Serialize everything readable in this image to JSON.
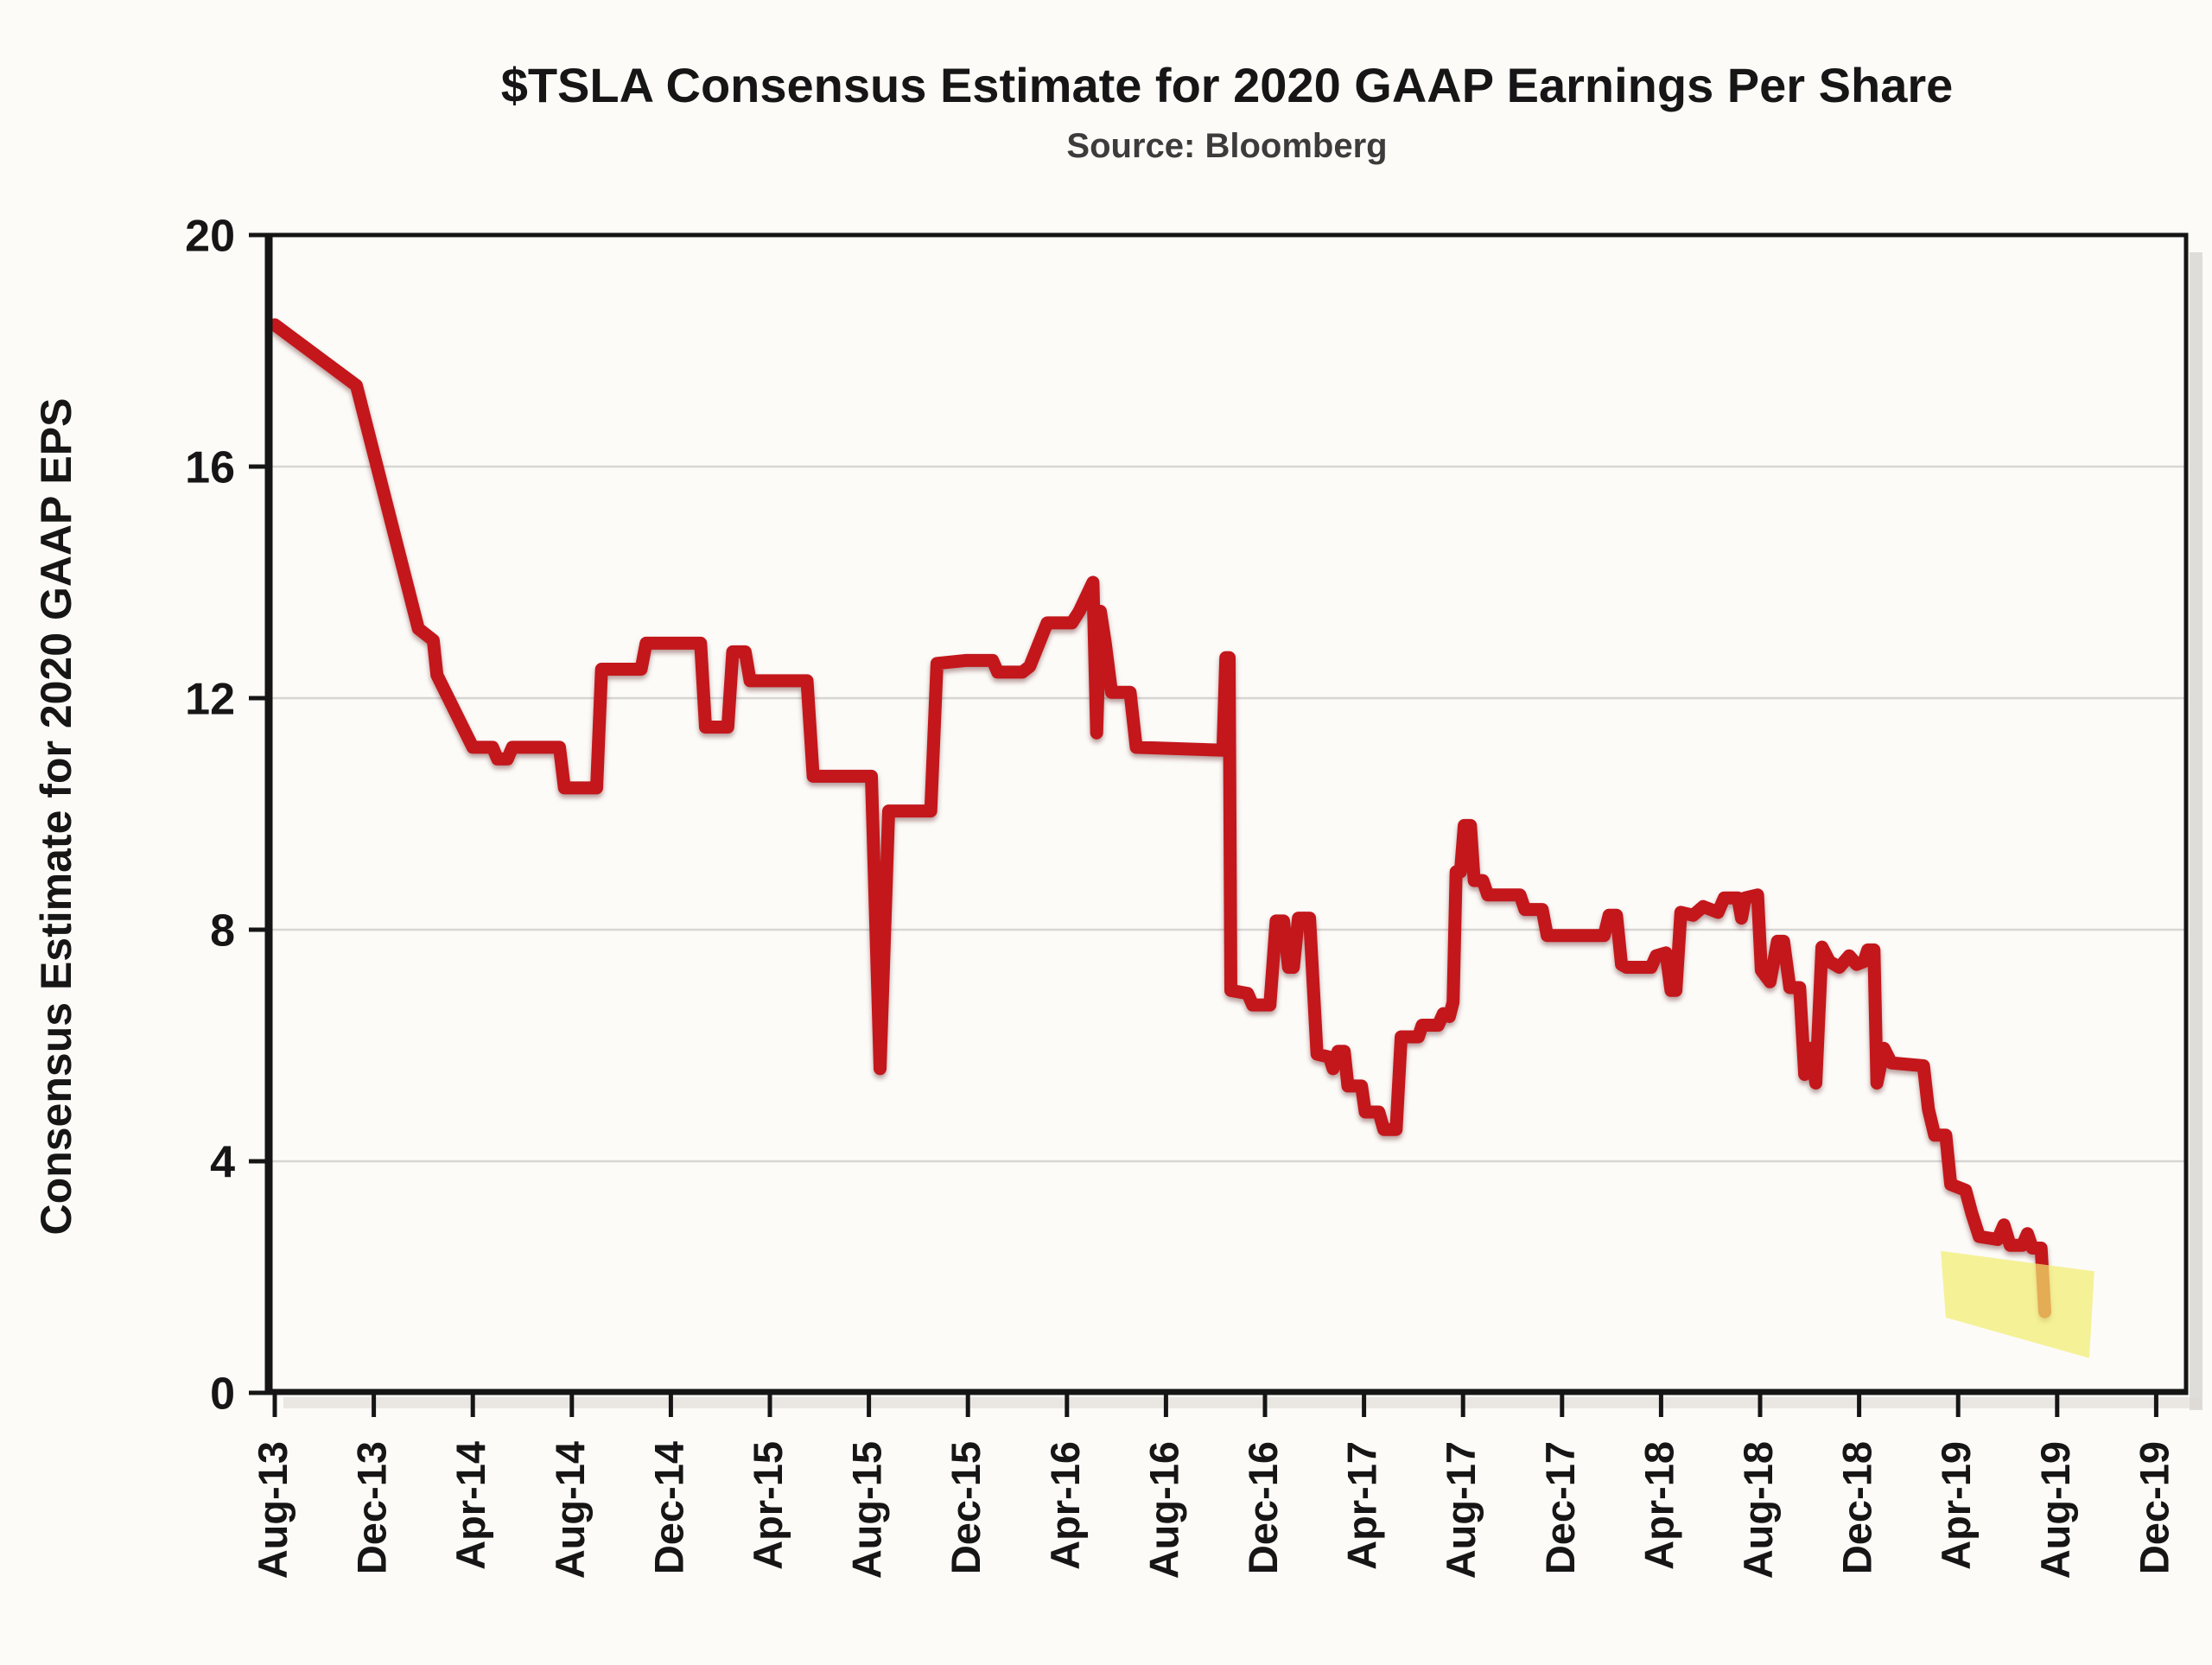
{
  "chart_data": {
    "type": "line",
    "title": "$TSLA Consensus Estimate for 2020 GAAP Earnings Per Share",
    "subtitle": "Source: Bloomberg",
    "xlabel": "",
    "ylabel": "Consensus Estimate for 2020 GAAP EPS",
    "x_axis": {
      "unit": "months since Aug-2013",
      "tick_interval_months": 4,
      "first_month": 0,
      "last_month": 76,
      "tick_labels": [
        "Aug-13",
        "Dec-13",
        "Apr-14",
        "Aug-14",
        "Dec-14",
        "Apr-15",
        "Aug-15",
        "Dec-15",
        "Apr-16",
        "Aug-16",
        "Dec-16",
        "Apr-17",
        "Aug-17",
        "Dec-17",
        "Apr-18",
        "Aug-18",
        "Dec-18",
        "Apr-19",
        "Aug-19",
        "Dec-19"
      ]
    },
    "y_axis": {
      "ticks": [
        0,
        4,
        8,
        12,
        16,
        20
      ],
      "range": [
        0,
        20
      ],
      "grid": "horizontal gridlines at 4, 8, 12, 16"
    },
    "colors": {
      "line": "#c3171c",
      "highlight": "#f2ec6e",
      "axis": "#151515",
      "gridline": "#d7d6d4",
      "background": "#fcfbf8"
    },
    "series": [
      {
        "name": "TSLA 2020 GAAP EPS consensus estimate",
        "color": "#c3171c",
        "points": [
          [
            0,
            18.45
          ],
          [
            3.3,
            17.4
          ],
          [
            5.8,
            13.2
          ],
          [
            6.4,
            13.0
          ],
          [
            6.55,
            12.4
          ],
          [
            8,
            11.15
          ],
          [
            8.8,
            11.15
          ],
          [
            9.0,
            10.95
          ],
          [
            9.4,
            10.95
          ],
          [
            9.6,
            11.15
          ],
          [
            11.5,
            11.15
          ],
          [
            11.7,
            10.45
          ],
          [
            13.0,
            10.45
          ],
          [
            13.2,
            12.5
          ],
          [
            14.8,
            12.5
          ],
          [
            15.0,
            12.95
          ],
          [
            17.2,
            12.95
          ],
          [
            17.4,
            11.5
          ],
          [
            18.3,
            11.5
          ],
          [
            18.5,
            12.8
          ],
          [
            19.0,
            12.8
          ],
          [
            19.2,
            12.3
          ],
          [
            21.5,
            12.3
          ],
          [
            21.75,
            10.65
          ],
          [
            24.1,
            10.65
          ],
          [
            24.45,
            5.6
          ],
          [
            24.8,
            10.05
          ],
          [
            26.5,
            10.05
          ],
          [
            26.75,
            12.6
          ],
          [
            27.9,
            12.65
          ],
          [
            29.0,
            12.65
          ],
          [
            29.2,
            12.45
          ],
          [
            30.2,
            12.45
          ],
          [
            30.5,
            12.55
          ],
          [
            31.2,
            13.3
          ],
          [
            32.2,
            13.3
          ],
          [
            32.5,
            13.5
          ],
          [
            33.05,
            14.0
          ],
          [
            33.2,
            11.4
          ],
          [
            33.35,
            13.5
          ],
          [
            33.55,
            12.95
          ],
          [
            33.8,
            12.1
          ],
          [
            34.55,
            12.1
          ],
          [
            34.8,
            11.15
          ],
          [
            38.3,
            11.1
          ],
          [
            38.42,
            12.7
          ],
          [
            38.55,
            12.7
          ],
          [
            38.62,
            6.95
          ],
          [
            39.3,
            6.9
          ],
          [
            39.5,
            6.7
          ],
          [
            40.2,
            6.7
          ],
          [
            40.45,
            8.15
          ],
          [
            40.75,
            8.15
          ],
          [
            40.95,
            7.35
          ],
          [
            41.15,
            7.35
          ],
          [
            41.35,
            8.2
          ],
          [
            41.8,
            8.2
          ],
          [
            42.1,
            5.85
          ],
          [
            42.6,
            5.8
          ],
          [
            42.75,
            5.6
          ],
          [
            42.95,
            5.9
          ],
          [
            43.2,
            5.9
          ],
          [
            43.35,
            5.3
          ],
          [
            43.9,
            5.3
          ],
          [
            44.05,
            4.85
          ],
          [
            44.6,
            4.85
          ],
          [
            44.8,
            4.55
          ],
          [
            45.3,
            4.55
          ],
          [
            45.5,
            6.15
          ],
          [
            46.2,
            6.15
          ],
          [
            46.35,
            6.35
          ],
          [
            47.0,
            6.35
          ],
          [
            47.2,
            6.55
          ],
          [
            47.45,
            6.5
          ],
          [
            47.6,
            6.75
          ],
          [
            47.72,
            9.0
          ],
          [
            47.9,
            9.0
          ],
          [
            48.05,
            9.8
          ],
          [
            48.3,
            9.8
          ],
          [
            48.45,
            8.85
          ],
          [
            48.8,
            8.85
          ],
          [
            49.0,
            8.6
          ],
          [
            50.3,
            8.6
          ],
          [
            50.5,
            8.35
          ],
          [
            51.2,
            8.35
          ],
          [
            51.4,
            7.9
          ],
          [
            53.7,
            7.9
          ],
          [
            53.9,
            8.25
          ],
          [
            54.2,
            8.25
          ],
          [
            54.4,
            7.4
          ],
          [
            54.6,
            7.35
          ],
          [
            55.6,
            7.35
          ],
          [
            55.8,
            7.55
          ],
          [
            56.2,
            7.6
          ],
          [
            56.4,
            6.95
          ],
          [
            56.6,
            6.95
          ],
          [
            56.8,
            8.3
          ],
          [
            57.3,
            8.25
          ],
          [
            57.7,
            8.4
          ],
          [
            58.3,
            8.3
          ],
          [
            58.55,
            8.55
          ],
          [
            59.1,
            8.55
          ],
          [
            59.25,
            8.2
          ],
          [
            59.4,
            8.55
          ],
          [
            59.9,
            8.6
          ],
          [
            60.05,
            7.3
          ],
          [
            60.4,
            7.1
          ],
          [
            60.7,
            7.8
          ],
          [
            60.95,
            7.8
          ],
          [
            61.2,
            7.0
          ],
          [
            61.6,
            7.0
          ],
          [
            61.8,
            5.5
          ],
          [
            62.05,
            5.95
          ],
          [
            62.25,
            5.35
          ],
          [
            62.5,
            7.7
          ],
          [
            62.8,
            7.45
          ],
          [
            63.2,
            7.35
          ],
          [
            63.6,
            7.55
          ],
          [
            63.9,
            7.4
          ],
          [
            64.2,
            7.45
          ],
          [
            64.35,
            7.65
          ],
          [
            64.6,
            7.65
          ],
          [
            64.72,
            5.35
          ],
          [
            65.0,
            5.95
          ],
          [
            65.3,
            5.7
          ],
          [
            66.6,
            5.65
          ],
          [
            66.8,
            4.9
          ],
          [
            67.05,
            4.45
          ],
          [
            67.5,
            4.45
          ],
          [
            67.7,
            3.6
          ],
          [
            68.3,
            3.5
          ],
          [
            68.55,
            3.1
          ],
          [
            68.85,
            2.7
          ],
          [
            69.6,
            2.65
          ],
          [
            69.85,
            2.9
          ],
          [
            70.1,
            2.55
          ],
          [
            70.6,
            2.55
          ],
          [
            70.8,
            2.75
          ],
          [
            71.0,
            2.5
          ],
          [
            71.35,
            2.5
          ],
          [
            71.5,
            1.4
          ]
        ]
      }
    ],
    "highlight_region": {
      "description": "hand-drawn yellow highlight band over the final 2019 estimates",
      "fill": "#f2ec6e",
      "opacity": 0.7,
      "points_month_value": [
        [
          67.3,
          2.45
        ],
        [
          73.5,
          2.1
        ],
        [
          73.3,
          0.6
        ],
        [
          67.5,
          1.3
        ]
      ]
    }
  }
}
